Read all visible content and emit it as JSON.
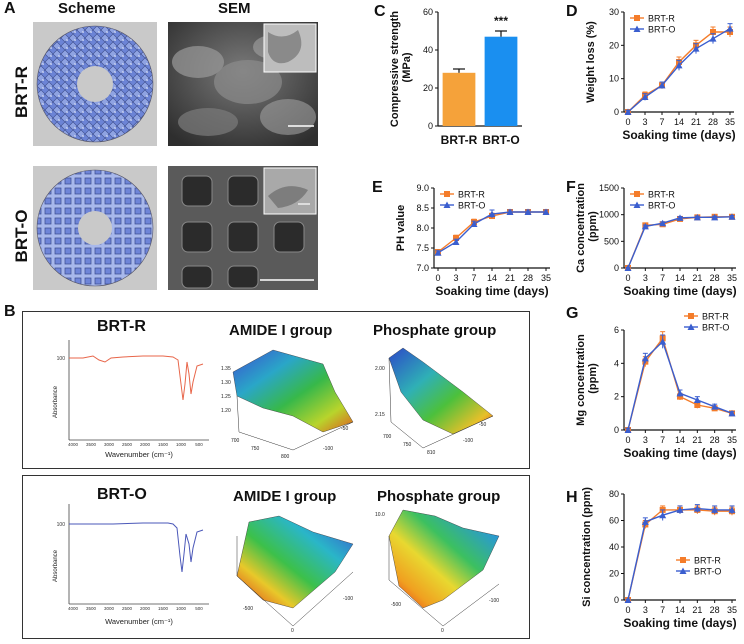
{
  "panel_A": {
    "label": "A",
    "col_scheme": "Scheme",
    "col_sem": "SEM",
    "row_r": "BRT-R",
    "row_o": "BRT-O"
  },
  "panel_B": {
    "label": "B",
    "boxes": [
      {
        "sample": "BRT-R",
        "ftir_ylabel": "Absorbance",
        "ftir_xlabel": "Wavenumber (cm⁻¹)",
        "ftir_xticks": [
          "4000",
          "3500",
          "3000",
          "2500",
          "2000",
          "1500",
          "1000",
          "500"
        ],
        "ftir_ytick": "100",
        "line_color": "#e8664a",
        "amide_title": "AMIDE I group",
        "phosphate_title": "Phosphate group",
        "amide_ticks": [
          "1.35",
          "1.30",
          "1.25",
          "1.20",
          "700",
          "750",
          "800",
          "-50",
          "-100"
        ],
        "phosphate_ticks": [
          "2.00",
          "2.15",
          "700",
          "750",
          "810",
          "-50",
          "-100"
        ]
      },
      {
        "sample": "BRT-O",
        "ftir_ylabel": "Absorbance",
        "ftir_xlabel": "Wavenumber (cm⁻¹)",
        "ftir_xticks": [
          "4000",
          "3500",
          "3000",
          "2500",
          "2000",
          "1500",
          "1000",
          "500"
        ],
        "ftir_ytick": "100",
        "line_color": "#4a57b8",
        "amide_title": "AMIDE I group",
        "phosphate_title": "Phosphate group",
        "amide_ticks": [
          "-500",
          "0",
          "-100"
        ],
        "phosphate_ticks": [
          "10.0",
          "-500",
          "0",
          "-100"
        ]
      }
    ]
  },
  "chart_data": [
    {
      "id": "C",
      "label": "C",
      "type": "bar",
      "title": "",
      "xlabel": "",
      "ylabel": "Compressive strength (MPa)",
      "categories": [
        "BRT-R",
        "BRT-O"
      ],
      "values": [
        28,
        47
      ],
      "errors": [
        2,
        3
      ],
      "colors": [
        "#f5a23a",
        "#1a8ff0"
      ],
      "ylim": [
        0,
        60
      ],
      "yticks": [
        0,
        20,
        40,
        60
      ],
      "annotation": "***"
    },
    {
      "id": "D",
      "label": "D",
      "type": "line",
      "ylabel": "Weight loss (%)",
      "xlabel": "Soaking time (days)",
      "x": [
        0,
        3,
        7,
        14,
        21,
        28,
        35
      ],
      "ylim": [
        0,
        30
      ],
      "yticks": [
        0,
        10,
        20,
        30
      ],
      "legend_position": "top-left",
      "series": [
        {
          "name": "BRT-R",
          "values": [
            0,
            5,
            8,
            15,
            20,
            24,
            24
          ],
          "errors": [
            0.5,
            1,
            1,
            1.5,
            1.5,
            1.5,
            1.5
          ]
        },
        {
          "name": "BRT-O",
          "values": [
            0,
            4.5,
            8,
            14,
            19,
            22,
            25
          ],
          "errors": [
            0.5,
            1,
            1,
            1.5,
            1.5,
            1.5,
            1.5
          ]
        }
      ]
    },
    {
      "id": "E",
      "label": "E",
      "type": "line",
      "ylabel": "PH value",
      "xlabel": "Soaking time (days)",
      "x": [
        0,
        3,
        7,
        14,
        21,
        28,
        35
      ],
      "ylim": [
        7.0,
        9.0
      ],
      "yticks": [
        7.0,
        7.5,
        8.0,
        8.5,
        9.0
      ],
      "legend_position": "top-left",
      "series": [
        {
          "name": "BRT-R",
          "values": [
            7.4,
            7.75,
            8.15,
            8.3,
            8.4,
            8.4,
            8.4
          ],
          "errors": [
            0.05,
            0.07,
            0.07,
            0.07,
            0.05,
            0.05,
            0.05
          ]
        },
        {
          "name": "BRT-O",
          "values": [
            7.38,
            7.65,
            8.1,
            8.35,
            8.4,
            8.4,
            8.4
          ],
          "errors": [
            0.05,
            0.07,
            0.07,
            0.1,
            0.05,
            0.05,
            0.05
          ]
        }
      ]
    },
    {
      "id": "F",
      "label": "F",
      "type": "line",
      "ylabel": "Ca concentration (ppm)",
      "xlabel": "Soaking time (days)",
      "x": [
        0,
        3,
        7,
        14,
        21,
        28,
        35
      ],
      "ylim": [
        0,
        1500
      ],
      "yticks": [
        0,
        500,
        1000,
        1500
      ],
      "legend_position": "top-left",
      "series": [
        {
          "name": "BRT-R",
          "values": [
            0,
            800,
            820,
            920,
            950,
            960,
            960
          ],
          "errors": [
            10,
            25,
            25,
            25,
            25,
            25,
            25
          ]
        },
        {
          "name": "BRT-O",
          "values": [
            0,
            780,
            840,
            940,
            950,
            950,
            960
          ],
          "errors": [
            10,
            25,
            25,
            25,
            25,
            25,
            25
          ]
        }
      ]
    },
    {
      "id": "G",
      "label": "G",
      "type": "line",
      "ylabel": "Mg concentration (ppm)",
      "xlabel": "Soaking time (days)",
      "x": [
        0,
        3,
        7,
        14,
        21,
        28,
        35
      ],
      "ylim": [
        0,
        6
      ],
      "yticks": [
        0,
        2,
        4,
        6
      ],
      "legend_position": "top-right",
      "series": [
        {
          "name": "BRT-R",
          "values": [
            0,
            4.1,
            5.5,
            2.0,
            1.5,
            1.3,
            1.0
          ],
          "errors": [
            0.1,
            0.3,
            0.4,
            0.2,
            0.2,
            0.15,
            0.1
          ]
        },
        {
          "name": "BRT-O",
          "values": [
            0,
            4.3,
            5.3,
            2.2,
            1.8,
            1.4,
            1.0
          ],
          "errors": [
            0.1,
            0.3,
            0.4,
            0.2,
            0.2,
            0.15,
            0.1
          ]
        }
      ]
    },
    {
      "id": "H",
      "label": "H",
      "type": "line",
      "ylabel": "Si concentration (ppm)",
      "xlabel": "Soaking time (days)",
      "x": [
        0,
        3,
        7,
        14,
        21,
        28,
        35
      ],
      "ylim": [
        0,
        80
      ],
      "yticks": [
        0,
        20,
        40,
        60,
        80
      ],
      "legend_position": "bottom-right",
      "series": [
        {
          "name": "BRT-R",
          "values": [
            0,
            57,
            68,
            68,
            68,
            67,
            67
          ],
          "errors": [
            0.5,
            3,
            3,
            3,
            3,
            3,
            3
          ]
        },
        {
          "name": "BRT-O",
          "values": [
            0,
            59,
            64,
            68,
            69,
            68,
            68
          ],
          "errors": [
            0.5,
            3,
            4,
            3,
            3,
            3,
            3
          ]
        }
      ]
    }
  ],
  "colors": {
    "brt_r": "#f47c2a",
    "brt_o": "#3a5ecf"
  }
}
